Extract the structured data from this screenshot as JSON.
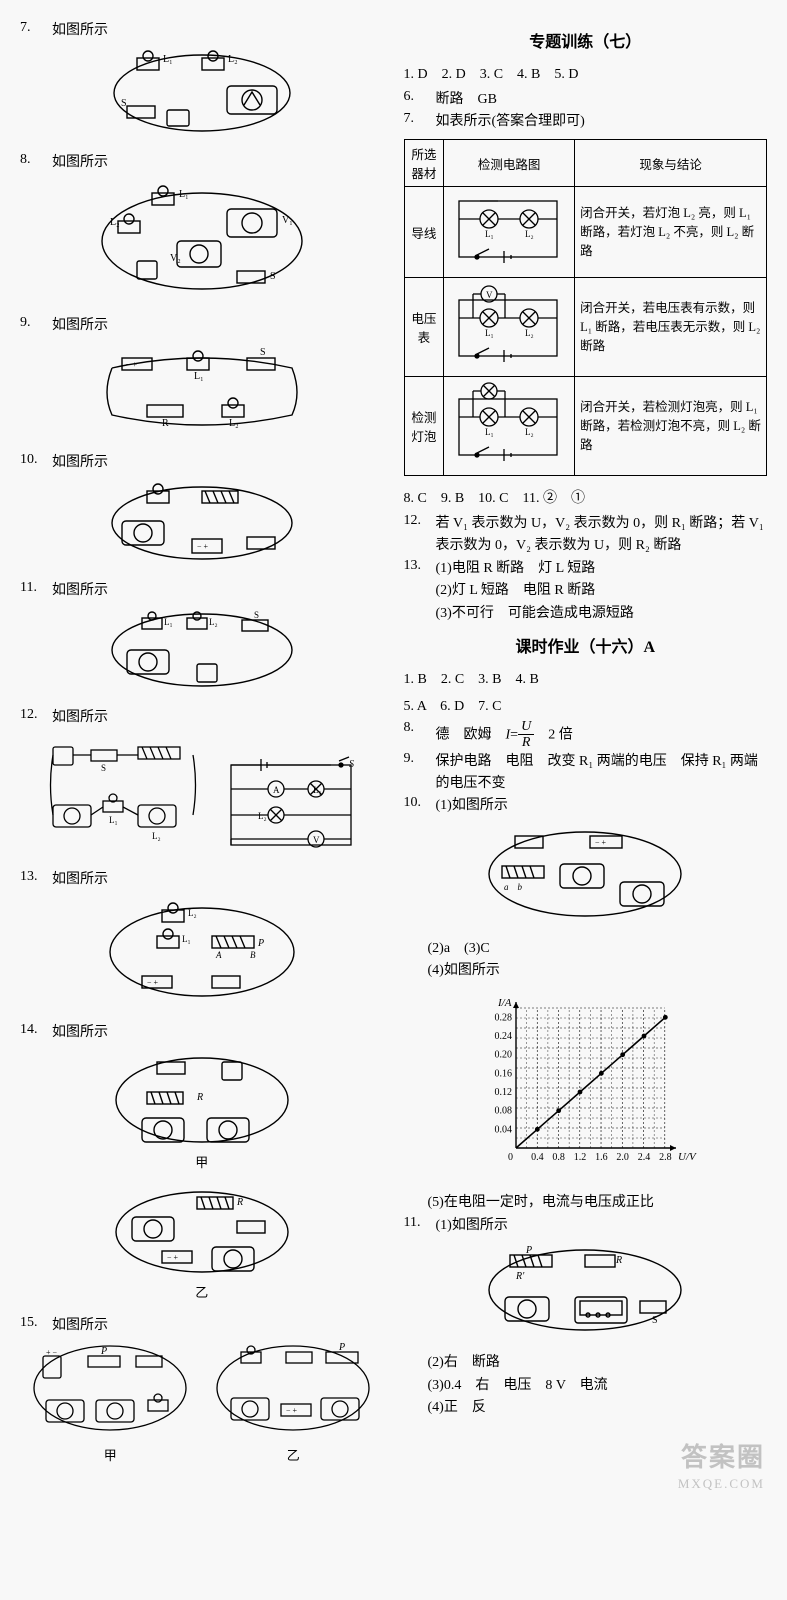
{
  "left": {
    "items": [
      {
        "num": "7.",
        "text": "如图所示"
      },
      {
        "num": "8.",
        "text": "如图所示"
      },
      {
        "num": "9.",
        "text": "如图所示"
      },
      {
        "num": "10.",
        "text": "如图所示"
      },
      {
        "num": "11.",
        "text": "如图所示"
      },
      {
        "num": "12.",
        "text": "如图所示"
      },
      {
        "num": "13.",
        "text": "如图所示"
      },
      {
        "num": "14.",
        "text": "如图所示"
      },
      {
        "num": "15.",
        "text": "如图所示"
      }
    ],
    "q14_caption_a": "甲",
    "q14_caption_b": "乙",
    "q15_caption_a": "甲",
    "q15_caption_b": "乙"
  },
  "right": {
    "heading1": "专题训练（七）",
    "line1": "1. D　2. D　3. C　4. B　5. D",
    "line2_num": "6.",
    "line2_text": "断路　GB",
    "line3_num": "7.",
    "line3_text": "如表所示(答案合理即可)",
    "table": {
      "head": [
        "所选器材",
        "检测电路图",
        "现象与结论"
      ],
      "rows": [
        {
          "tool": "导线",
          "concl": "闭合开关，若灯泡 L₂ 亮，则 L₁ 断路，若灯泡 L₂ 不亮，则 L₂ 断路"
        },
        {
          "tool": "电压表",
          "concl": "闭合开关，若电压表有示数，则 L₁ 断路，若电压表无示数，则 L₂ 断路"
        },
        {
          "tool": "检测灯泡",
          "concl": "闭合开关，若检测灯泡亮，则 L₁ 断路，若检测灯泡不亮，则 L₂ 断路"
        }
      ]
    },
    "line8": "8. C　9. B　10. C　11. ②　①",
    "line12_num": "12.",
    "line12_text": "若 V₁ 表示数为 U，V₂ 表示数为 0，则 R₁ 断路；若 V₁ 表示数为 0，V₂ 表示数为 U，则 R₂ 断路",
    "line13_num": "13.",
    "line13_a": "(1)电阻 R 断路　灯 L 短路",
    "line13_b": "(2)灯 L 短路　电阻 R 断路",
    "line13_c": "(3)不可行　可能会造成电源短路",
    "heading2": "课时作业（十六）A",
    "ans_a": "1. B　2. C　3. B　4. B",
    "ans_b": "5. A　6. D　7. C",
    "ans8_num": "8.",
    "ans8_text": "德　欧姆　I = U / R　2 倍",
    "ans9_num": "9.",
    "ans9_text": "保护电路　电阻　改变 R₁ 两端的电压　保持 R₁ 两端的电压不变",
    "ans10_num": "10.",
    "ans10_text": "(1)如图所示",
    "ans10_2": "(2)a　(3)C",
    "ans10_4": "(4)如图所示",
    "chart": {
      "ylabel": "I/A",
      "xlabel": "U/V",
      "y_ticks": [
        "0.04",
        "0.08",
        "0.12",
        "0.16",
        "0.20",
        "0.24",
        "0.28"
      ],
      "x_ticks": [
        "0.4",
        "0.8",
        "1.2",
        "1.6",
        "2.0",
        "2.4",
        "2.8"
      ],
      "points": [
        [
          0,
          0
        ],
        [
          0.4,
          0.04
        ],
        [
          0.8,
          0.08
        ],
        [
          1.2,
          0.12
        ],
        [
          1.6,
          0.16
        ],
        [
          2.0,
          0.2
        ],
        [
          2.4,
          0.24
        ],
        [
          2.8,
          0.28
        ]
      ],
      "xlim": [
        0,
        3.0
      ],
      "ylim": [
        0,
        0.3
      ],
      "grid_color": "#000",
      "line_color": "#000",
      "bg": "#ffffff"
    },
    "ans10_5": "(5)在电阻一定时，电流与电压成正比",
    "ans11_num": "11.",
    "ans11_text": "(1)如图所示",
    "ans11_2": "(2)右　断路",
    "ans11_3": "(3)0.4　右　电压　8 V　电流",
    "ans11_4": "(4)正　反"
  },
  "watermark": {
    "main": "答案圈",
    "url": "MXQE.COM"
  }
}
